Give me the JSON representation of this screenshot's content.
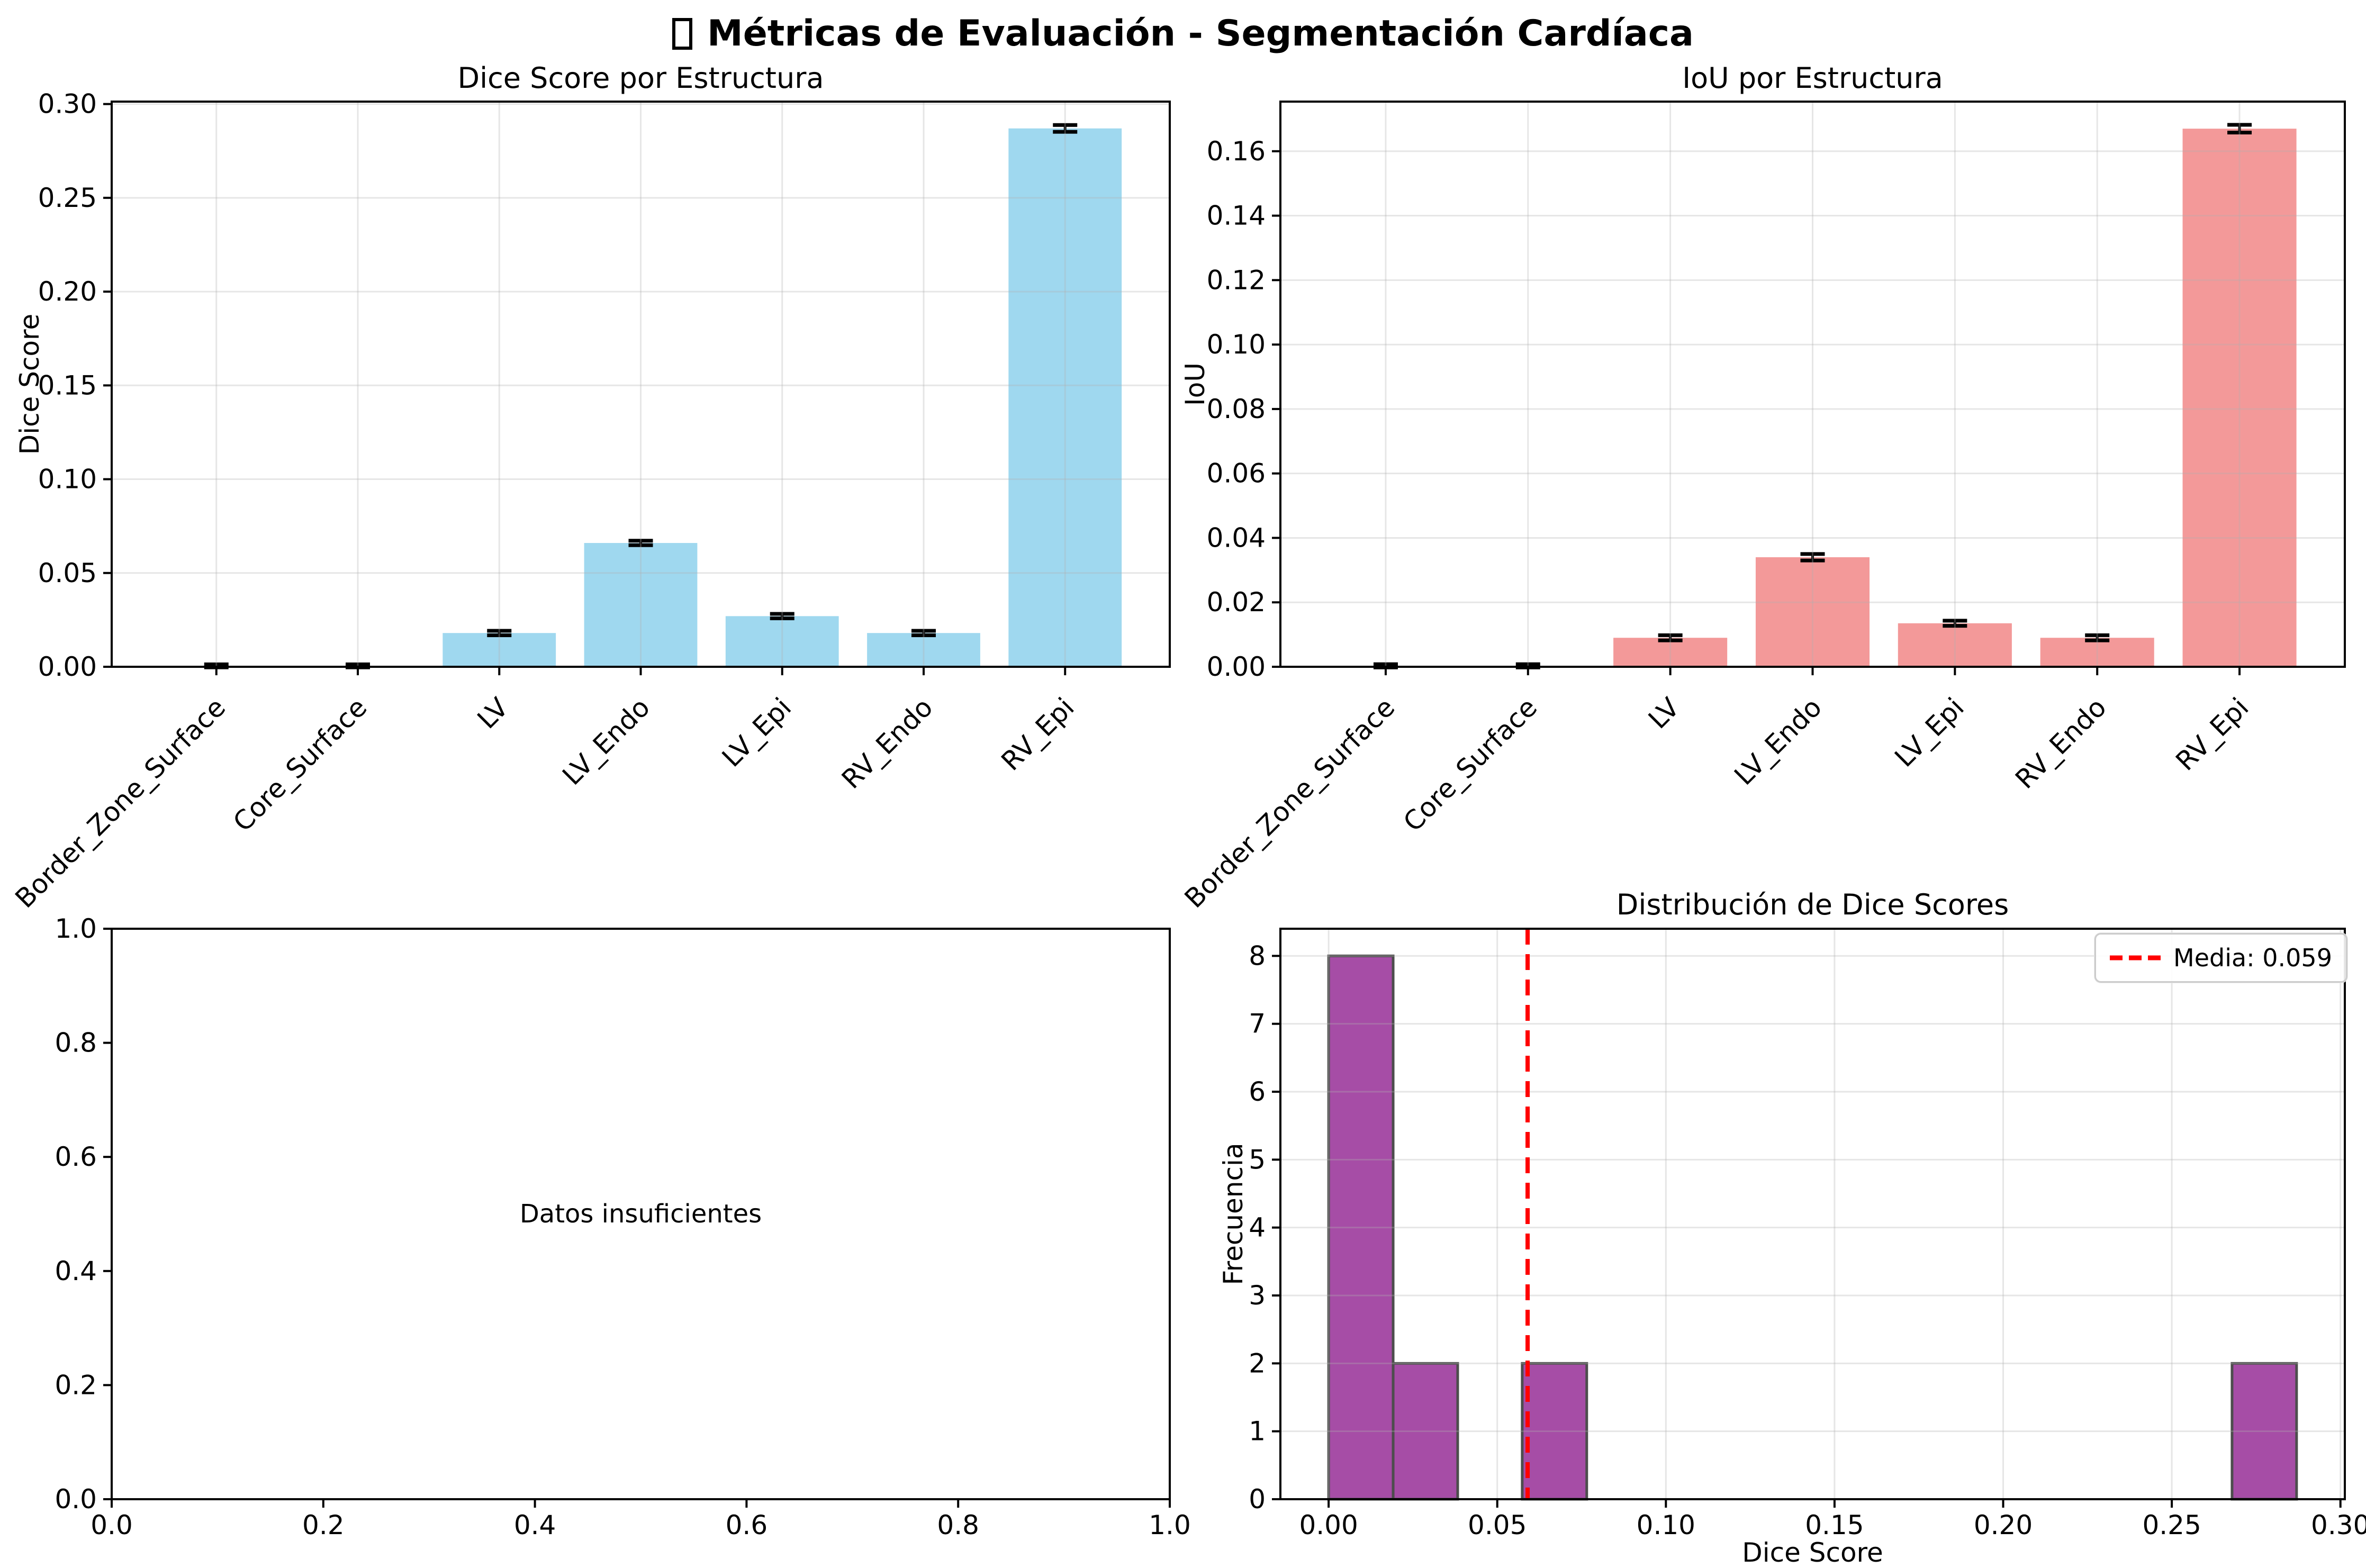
{
  "suptitle": {
    "text": "Métricas de Evaluación - Segmentación Cardíaca"
  },
  "chart_data": [
    {
      "id": "dice",
      "type": "bar",
      "title": "Dice Score por Estructura",
      "ylabel": "Dice Score",
      "categories": [
        "Border_Zone_Surface",
        "Core_Surface",
        "LV",
        "LV_Endo",
        "LV_Epi",
        "RV_Endo",
        "RV_Epi"
      ],
      "values": [
        0.0005,
        0.0005,
        0.018,
        0.066,
        0.027,
        0.018,
        0.287
      ],
      "errors": [
        0.0008,
        0.0008,
        0.0012,
        0.0012,
        0.0012,
        0.0012,
        0.0018
      ],
      "bar_color": "#9FD8EF",
      "error_color": "#000000",
      "ylim": [
        0,
        0.3013
      ],
      "yticks": [
        "0.00",
        "0.05",
        "0.10",
        "0.15",
        "0.20",
        "0.25",
        "0.30"
      ],
      "grid": true
    },
    {
      "id": "iou",
      "type": "bar",
      "title": "IoU por Estructura",
      "ylabel": "IoU",
      "categories": [
        "Border_Zone_Surface",
        "Core_Surface",
        "LV",
        "LV_Endo",
        "LV_Epi",
        "RV_Endo",
        "RV_Epi"
      ],
      "values": [
        0.0003,
        0.0003,
        0.009,
        0.034,
        0.0135,
        0.009,
        0.167
      ],
      "errors": [
        0.0005,
        0.0005,
        0.0008,
        0.001,
        0.0008,
        0.0008,
        0.0012
      ],
      "bar_color": "#F39999",
      "error_color": "#000000",
      "ylim": [
        0,
        0.1754
      ],
      "yticks": [
        "0.00",
        "0.02",
        "0.04",
        "0.06",
        "0.08",
        "0.10",
        "0.12",
        "0.14",
        "0.16"
      ],
      "grid": true
    },
    {
      "id": "empty",
      "type": "empty",
      "annotation": "Datos insuficientes",
      "xlim": [
        0,
        1
      ],
      "ylim": [
        0,
        1
      ],
      "xticks": [
        "0.0",
        "0.2",
        "0.4",
        "0.6",
        "0.8",
        "1.0"
      ],
      "yticks": [
        "0.0",
        "0.2",
        "0.4",
        "0.6",
        "0.8",
        "1.0"
      ],
      "grid": false
    },
    {
      "id": "hist",
      "type": "histogram",
      "title": "Distribución de Dice Scores",
      "xlabel": "Dice Score",
      "ylabel": "Frecuencia",
      "bin_start": 0.0,
      "bin_width": 0.019133,
      "counts": [
        8,
        2,
        0,
        2,
        0,
        0,
        0,
        0,
        0,
        0,
        0,
        0,
        0,
        0,
        2
      ],
      "bar_color": "#A64DA6",
      "bar_edge_color": "#4D4D4D",
      "mean": 0.059,
      "mean_line_color": "#FF0000",
      "legend_label": "Media: 0.059",
      "xlim": [
        -0.0143,
        0.3013
      ],
      "ylim": [
        0,
        8.4
      ],
      "xticks": [
        "0.00",
        "0.05",
        "0.10",
        "0.15",
        "0.20",
        "0.25",
        "0.30"
      ],
      "yticks": [
        "0",
        "1",
        "2",
        "3",
        "4",
        "5",
        "6",
        "7",
        "8"
      ],
      "grid": true
    }
  ]
}
